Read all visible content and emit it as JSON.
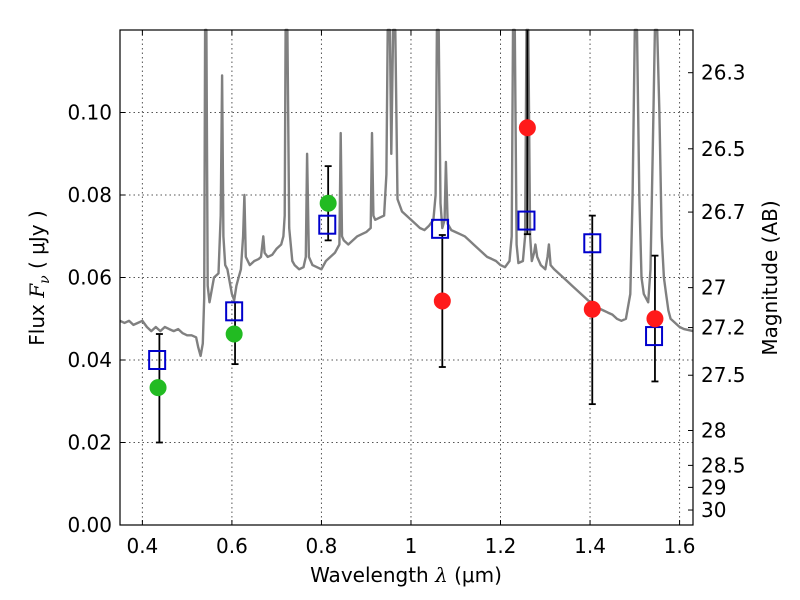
{
  "chart_data": {
    "type": "scatter",
    "title": "",
    "xlabel": "Wavelength",
    "xlabel_symbol": "λ",
    "xlabel_unit": "(μm)",
    "ylabel": "Flux",
    "ylabel_symbol": "F",
    "ylabel_sub": "ν",
    "ylabel_unit": "( μJy )",
    "y2label": "Magnitude (AB)",
    "xlim": [
      0.35,
      1.63
    ],
    "ylim": [
      0.0,
      0.12
    ],
    "grid": true,
    "x_ticks": [
      0.4,
      0.6,
      0.8,
      1.0,
      1.2,
      1.4,
      1.6
    ],
    "x_tick_labels": [
      "0.4",
      "0.6",
      "0.8",
      "1",
      "1.2",
      "1.4",
      "1.6"
    ],
    "y_ticks": [
      0.0,
      0.02,
      0.04,
      0.06,
      0.08,
      0.1
    ],
    "y_tick_labels": [
      "0.00",
      "0.02",
      "0.04",
      "0.06",
      "0.08",
      "0.10"
    ],
    "y2_ticks": [
      {
        "label": "26.3",
        "value": 26.3
      },
      {
        "label": "26.5",
        "value": 26.5
      },
      {
        "label": "26.7",
        "value": 26.7
      },
      {
        "label": "27",
        "value": 27.0
      },
      {
        "label": "27.2",
        "value": 27.2
      },
      {
        "label": "27.5",
        "value": 27.5
      },
      {
        "label": "28",
        "value": 28.0
      },
      {
        "label": "28.5",
        "value": 28.5
      },
      {
        "label": "29",
        "value": 29.0
      },
      {
        "label": "30",
        "value": 30.0
      }
    ],
    "colors": {
      "model": "#808080",
      "green": "#22bb22",
      "red": "#ff1a1a",
      "box": "#0000cc",
      "error": "#000000",
      "grid": "#555555"
    },
    "series": [
      {
        "name": "model_spectrum",
        "type": "line",
        "points": [
          [
            0.35,
            0.0495
          ],
          [
            0.36,
            0.049
          ],
          [
            0.37,
            0.0495
          ],
          [
            0.38,
            0.0485
          ],
          [
            0.39,
            0.049
          ],
          [
            0.4,
            0.0495
          ],
          [
            0.41,
            0.048
          ],
          [
            0.42,
            0.047
          ],
          [
            0.43,
            0.048
          ],
          [
            0.44,
            0.047
          ],
          [
            0.45,
            0.048
          ],
          [
            0.46,
            0.0475
          ],
          [
            0.47,
            0.047
          ],
          [
            0.48,
            0.0475
          ],
          [
            0.49,
            0.0465
          ],
          [
            0.5,
            0.046
          ],
          [
            0.51,
            0.046
          ],
          [
            0.52,
            0.0455
          ],
          [
            0.525,
            0.043
          ],
          [
            0.53,
            0.041
          ],
          [
            0.535,
            0.044
          ],
          [
            0.538,
            0.055
          ],
          [
            0.54,
            0.12
          ],
          [
            0.543,
            0.12
          ],
          [
            0.546,
            0.058
          ],
          [
            0.55,
            0.054
          ],
          [
            0.56,
            0.06
          ],
          [
            0.57,
            0.061
          ],
          [
            0.575,
            0.075
          ],
          [
            0.578,
            0.109
          ],
          [
            0.581,
            0.07
          ],
          [
            0.585,
            0.063
          ],
          [
            0.59,
            0.062
          ],
          [
            0.6,
            0.056
          ],
          [
            0.605,
            0.0545
          ],
          [
            0.61,
            0.058
          ],
          [
            0.615,
            0.06
          ],
          [
            0.62,
            0.062
          ],
          [
            0.625,
            0.07
          ],
          [
            0.628,
            0.08
          ],
          [
            0.631,
            0.065
          ],
          [
            0.64,
            0.063
          ],
          [
            0.65,
            0.064
          ],
          [
            0.66,
            0.0645
          ],
          [
            0.665,
            0.065
          ],
          [
            0.67,
            0.07
          ],
          [
            0.673,
            0.066
          ],
          [
            0.68,
            0.065
          ],
          [
            0.69,
            0.0655
          ],
          [
            0.7,
            0.067
          ],
          [
            0.71,
            0.068
          ],
          [
            0.715,
            0.07
          ],
          [
            0.718,
            0.075
          ],
          [
            0.72,
            0.12
          ],
          [
            0.724,
            0.12
          ],
          [
            0.728,
            0.072
          ],
          [
            0.735,
            0.064
          ],
          [
            0.74,
            0.063
          ],
          [
            0.75,
            0.062
          ],
          [
            0.76,
            0.0625
          ],
          [
            0.765,
            0.065
          ],
          [
            0.768,
            0.09
          ],
          [
            0.772,
            0.065
          ],
          [
            0.78,
            0.063
          ],
          [
            0.79,
            0.0625
          ],
          [
            0.8,
            0.062
          ],
          [
            0.81,
            0.064
          ],
          [
            0.82,
            0.065
          ],
          [
            0.83,
            0.066
          ],
          [
            0.84,
            0.068
          ],
          [
            0.843,
            0.095
          ],
          [
            0.846,
            0.07
          ],
          [
            0.85,
            0.069
          ],
          [
            0.86,
            0.068
          ],
          [
            0.87,
            0.069
          ],
          [
            0.88,
            0.07
          ],
          [
            0.89,
            0.0705
          ],
          [
            0.9,
            0.071
          ],
          [
            0.91,
            0.072
          ],
          [
            0.913,
            0.095
          ],
          [
            0.916,
            0.075
          ],
          [
            0.92,
            0.074
          ],
          [
            0.93,
            0.0745
          ],
          [
            0.94,
            0.075
          ],
          [
            0.945,
            0.085
          ],
          [
            0.948,
            0.12
          ],
          [
            0.953,
            0.12
          ],
          [
            0.956,
            0.09
          ],
          [
            0.96,
            0.12
          ],
          [
            0.965,
            0.12
          ],
          [
            0.97,
            0.079
          ],
          [
            0.98,
            0.076
          ],
          [
            0.99,
            0.075
          ],
          [
            1.0,
            0.074
          ],
          [
            1.01,
            0.073
          ],
          [
            1.02,
            0.072
          ],
          [
            1.03,
            0.0715
          ],
          [
            1.04,
            0.0725
          ],
          [
            1.05,
            0.074
          ],
          [
            1.055,
            0.08
          ],
          [
            1.058,
            0.12
          ],
          [
            1.062,
            0.12
          ],
          [
            1.066,
            0.078
          ],
          [
            1.07,
            0.072
          ],
          [
            1.075,
            0.074
          ],
          [
            1.078,
            0.088
          ],
          [
            1.082,
            0.073
          ],
          [
            1.09,
            0.0715
          ],
          [
            1.1,
            0.071
          ],
          [
            1.11,
            0.0705
          ],
          [
            1.12,
            0.07
          ],
          [
            1.13,
            0.069
          ],
          [
            1.14,
            0.068
          ],
          [
            1.15,
            0.067
          ],
          [
            1.16,
            0.066
          ],
          [
            1.17,
            0.065
          ],
          [
            1.18,
            0.0645
          ],
          [
            1.19,
            0.064
          ],
          [
            1.2,
            0.063
          ],
          [
            1.21,
            0.0625
          ],
          [
            1.22,
            0.064
          ],
          [
            1.225,
            0.07
          ],
          [
            1.228,
            0.12
          ],
          [
            1.232,
            0.12
          ],
          [
            1.236,
            0.068
          ],
          [
            1.24,
            0.0635
          ],
          [
            1.25,
            0.064
          ],
          [
            1.255,
            0.07
          ],
          [
            1.258,
            0.12
          ],
          [
            1.262,
            0.12
          ],
          [
            1.266,
            0.07
          ],
          [
            1.27,
            0.064
          ],
          [
            1.275,
            0.066
          ],
          [
            1.278,
            0.068
          ],
          [
            1.282,
            0.065
          ],
          [
            1.29,
            0.063
          ],
          [
            1.3,
            0.062
          ],
          [
            1.305,
            0.065
          ],
          [
            1.308,
            0.068
          ],
          [
            1.312,
            0.063
          ],
          [
            1.32,
            0.062
          ],
          [
            1.33,
            0.061
          ],
          [
            1.34,
            0.06
          ],
          [
            1.35,
            0.059
          ],
          [
            1.36,
            0.058
          ],
          [
            1.37,
            0.057
          ],
          [
            1.38,
            0.056
          ],
          [
            1.39,
            0.055
          ],
          [
            1.4,
            0.054
          ],
          [
            1.41,
            0.053
          ],
          [
            1.42,
            0.0525
          ],
          [
            1.43,
            0.052
          ],
          [
            1.44,
            0.0515
          ],
          [
            1.45,
            0.051
          ],
          [
            1.46,
            0.05
          ],
          [
            1.47,
            0.0495
          ],
          [
            1.48,
            0.05
          ],
          [
            1.49,
            0.056
          ],
          [
            1.495,
            0.08
          ],
          [
            1.5,
            0.12
          ],
          [
            1.505,
            0.12
          ],
          [
            1.51,
            0.08
          ],
          [
            1.515,
            0.06
          ],
          [
            1.52,
            0.056
          ],
          [
            1.53,
            0.054
          ],
          [
            1.535,
            0.062
          ],
          [
            1.54,
            0.09
          ],
          [
            1.545,
            0.12
          ],
          [
            1.55,
            0.12
          ],
          [
            1.555,
            0.1
          ],
          [
            1.56,
            0.07
          ],
          [
            1.565,
            0.06
          ],
          [
            1.57,
            0.056
          ],
          [
            1.575,
            0.052
          ],
          [
            1.58,
            0.05
          ],
          [
            1.59,
            0.049
          ],
          [
            1.6,
            0.048
          ],
          [
            1.61,
            0.0475
          ],
          [
            1.63,
            0.047
          ]
        ]
      },
      {
        "name": "green_points",
        "type": "scatter",
        "points": [
          [
            0.435,
            0.0333
          ],
          [
            0.605,
            0.0463
          ],
          [
            0.815,
            0.078
          ]
        ]
      },
      {
        "name": "red_points",
        "type": "scatter",
        "points": [
          [
            1.07,
            0.0543
          ],
          [
            1.26,
            0.0963
          ],
          [
            1.405,
            0.0523
          ],
          [
            1.545,
            0.05
          ]
        ]
      },
      {
        "name": "model_box_points",
        "type": "scatter",
        "points": [
          [
            0.433,
            0.04
          ],
          [
            0.605,
            0.0518
          ],
          [
            0.813,
            0.0728
          ],
          [
            1.065,
            0.0718
          ],
          [
            1.258,
            0.0738
          ],
          [
            1.405,
            0.0683
          ],
          [
            1.543,
            0.0458
          ]
        ]
      },
      {
        "name": "error_bars",
        "type": "errorbar",
        "bars": [
          {
            "x": 0.438,
            "low": 0.02,
            "high": 0.0463
          },
          {
            "x": 0.607,
            "low": 0.039,
            "high": 0.054
          },
          {
            "x": 0.815,
            "low": 0.069,
            "high": 0.087
          },
          {
            "x": 1.07,
            "low": 0.0383,
            "high": 0.0703
          },
          {
            "x": 1.26,
            "low": 0.0705,
            "high": 0.12
          },
          {
            "x": 1.405,
            "low": 0.0293,
            "high": 0.075
          },
          {
            "x": 1.545,
            "low": 0.0348,
            "high": 0.0653
          }
        ]
      }
    ]
  }
}
